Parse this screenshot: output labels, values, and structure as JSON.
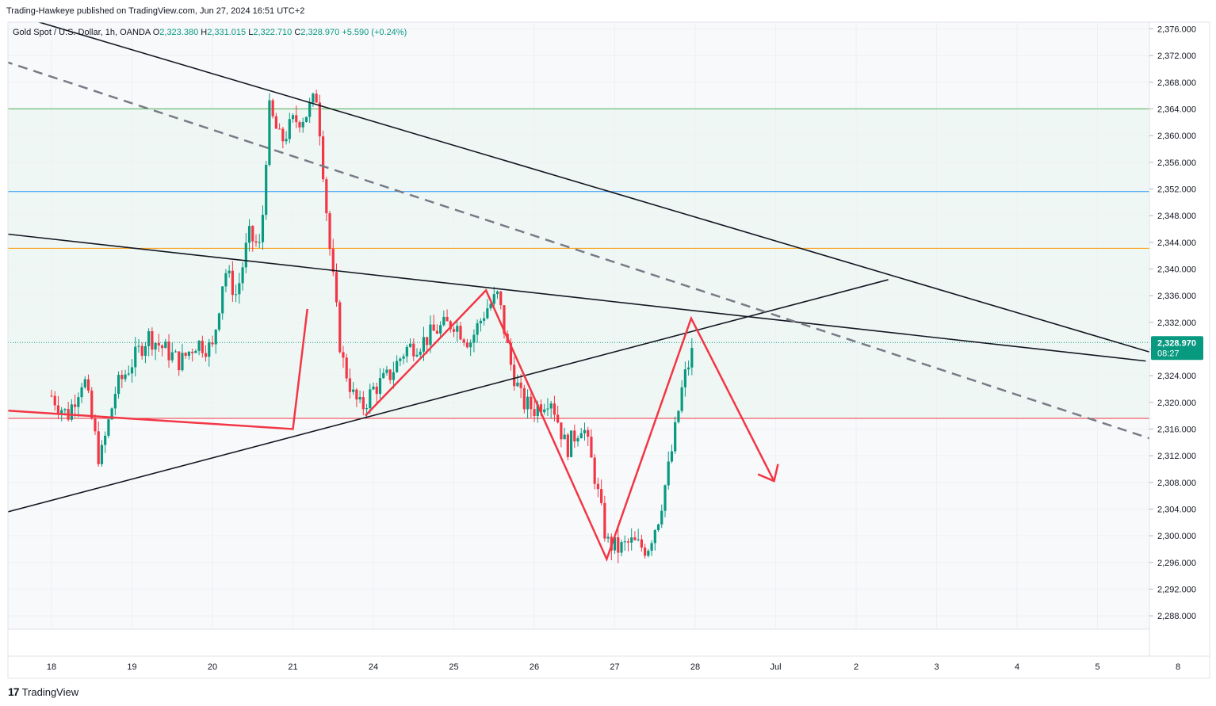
{
  "publisher_line": "Trading-Hawkeye published on TradingView.com, Jun 27, 2024 16:51 UTC+2",
  "legend": {
    "symbol": "Gold Spot / U.S. Dollar, 1h, OANDA",
    "o_label": "O",
    "o": "2,323.380",
    "h_label": "H",
    "h": "2,331.015",
    "l_label": "L",
    "l": "2,322.710",
    "c_label": "C",
    "c": "2,328.970",
    "change": "+5.590 (+0.24%)"
  },
  "price_badge": {
    "price": "2,328.970",
    "countdown": "08:27"
  },
  "footer": {
    "brand": "TradingView",
    "mark": "17"
  },
  "colors": {
    "up": "#089981",
    "down": "#f23645",
    "trendline": "#131722",
    "dashed": "#787b86",
    "projection": "#f23645",
    "level_green": "#4caf50",
    "level_blue": "#2196f3",
    "level_orange": "#ff9800",
    "level_red": "#f23645",
    "zone_fill": "#e8f5ee"
  },
  "chart_data": {
    "type": "candlestick",
    "title": "Gold Spot / U.S. Dollar, 1h, OANDA",
    "ylim": [
      2286,
      2377
    ],
    "y_ticks": [
      2376,
      2372,
      2368,
      2364,
      2360,
      2356,
      2352,
      2348,
      2344,
      2340,
      2336,
      2332,
      2328,
      2324,
      2320,
      2316,
      2312,
      2308,
      2304,
      2300,
      2296,
      2292,
      2288
    ],
    "y_tick_labels": [
      "2,376.000",
      "2,372.000",
      "2,368.000",
      "2,364.000",
      "2,360.000",
      "2,356.000",
      "2,352.000",
      "2,348.000",
      "2,344.000",
      "2,340.000",
      "2,336.000",
      "2,332.000",
      "2,328.000",
      "2,324.000",
      "2,320.000",
      "2,316.000",
      "2,312.000",
      "2,308.000",
      "2,304.000",
      "2,300.000",
      "2,296.000",
      "2,292.000",
      "2,288.000"
    ],
    "x_days": [
      {
        "label": "18",
        "day": 0
      },
      {
        "label": "19",
        "day": 1
      },
      {
        "label": "20",
        "day": 2
      },
      {
        "label": "21",
        "day": 3
      },
      {
        "label": "24",
        "day": 4
      },
      {
        "label": "25",
        "day": 5
      },
      {
        "label": "26",
        "day": 6
      },
      {
        "label": "27",
        "day": 7
      },
      {
        "label": "28",
        "day": 8
      },
      {
        "label": "Jul",
        "day": 9
      },
      {
        "label": "2",
        "day": 10
      },
      {
        "label": "3",
        "day": 11
      },
      {
        "label": "4",
        "day": 12
      },
      {
        "label": "5",
        "day": 13
      },
      {
        "label": "8",
        "day": 14
      }
    ],
    "horizontal_levels": [
      {
        "price": 2364.0,
        "color": "#4caf50"
      },
      {
        "price": 2351.6,
        "color": "#2196f3"
      },
      {
        "price": 2343.1,
        "color": "#ff9800"
      },
      {
        "price": 2317.6,
        "color": "#f23645"
      }
    ],
    "shaded_zone": [
      2317.6,
      2364.0
    ],
    "trendlines": [
      {
        "style": "solid",
        "from": [
          -0.6,
          2378.6
        ],
        "to": [
          13.8,
          2327.0
        ]
      },
      {
        "style": "solid",
        "from": [
          -0.6,
          2345.3
        ],
        "to": [
          13.6,
          2326.2
        ]
      },
      {
        "style": "solid",
        "from": [
          -0.6,
          2303.4
        ],
        "to": [
          10.4,
          2338.4
        ]
      },
      {
        "style": "dashed",
        "from": [
          -0.6,
          2371.2
        ],
        "to": [
          14.1,
          2312.8
        ]
      }
    ],
    "projection_path": [
      [
        -0.6,
        2318.8
      ],
      [
        3.0,
        2316.0
      ],
      [
        3.18,
        2334.0
      ]
    ],
    "projection_zigzag": [
      [
        3.9,
        2318.0
      ],
      [
        5.4,
        2336.8
      ],
      [
        6.9,
        2296.5
      ],
      [
        7.95,
        2332.6
      ],
      [
        8.98,
        2308.2
      ]
    ],
    "candle_anchors": [
      [
        0.0,
        2321
      ],
      [
        0.2,
        2318
      ],
      [
        0.4,
        2324
      ],
      [
        0.6,
        2311
      ],
      [
        0.8,
        2322
      ],
      [
        1.0,
        2326
      ],
      [
        1.2,
        2330
      ],
      [
        1.4,
        2328
      ],
      [
        1.6,
        2326
      ],
      [
        1.8,
        2329
      ],
      [
        2.0,
        2328
      ],
      [
        2.15,
        2340
      ],
      [
        2.3,
        2336
      ],
      [
        2.45,
        2345
      ],
      [
        2.6,
        2343
      ],
      [
        2.7,
        2364
      ],
      [
        2.85,
        2359
      ],
      [
        3.0,
        2362
      ],
      [
        3.15,
        2363
      ],
      [
        3.3,
        2366
      ],
      [
        3.45,
        2344
      ],
      [
        3.6,
        2327
      ],
      [
        3.75,
        2321
      ],
      [
        3.85,
        2319
      ],
      [
        4.0,
        2322
      ],
      [
        4.2,
        2324
      ],
      [
        4.4,
        2328
      ],
      [
        4.6,
        2329
      ],
      [
        4.8,
        2331
      ],
      [
        5.0,
        2332
      ],
      [
        5.2,
        2329
      ],
      [
        5.4,
        2334
      ],
      [
        5.55,
        2336
      ],
      [
        5.7,
        2326
      ],
      [
        5.85,
        2320
      ],
      [
        6.0,
        2319
      ],
      [
        6.2,
        2321
      ],
      [
        6.4,
        2313
      ],
      [
        6.6,
        2317
      ],
      [
        6.75,
        2309
      ],
      [
        6.9,
        2299
      ],
      [
        7.05,
        2298
      ],
      [
        7.2,
        2299
      ],
      [
        7.4,
        2298
      ],
      [
        7.55,
        2303
      ],
      [
        7.7,
        2312
      ],
      [
        7.85,
        2323
      ],
      [
        8.0,
        2329
      ]
    ],
    "last_close": 2328.97
  }
}
